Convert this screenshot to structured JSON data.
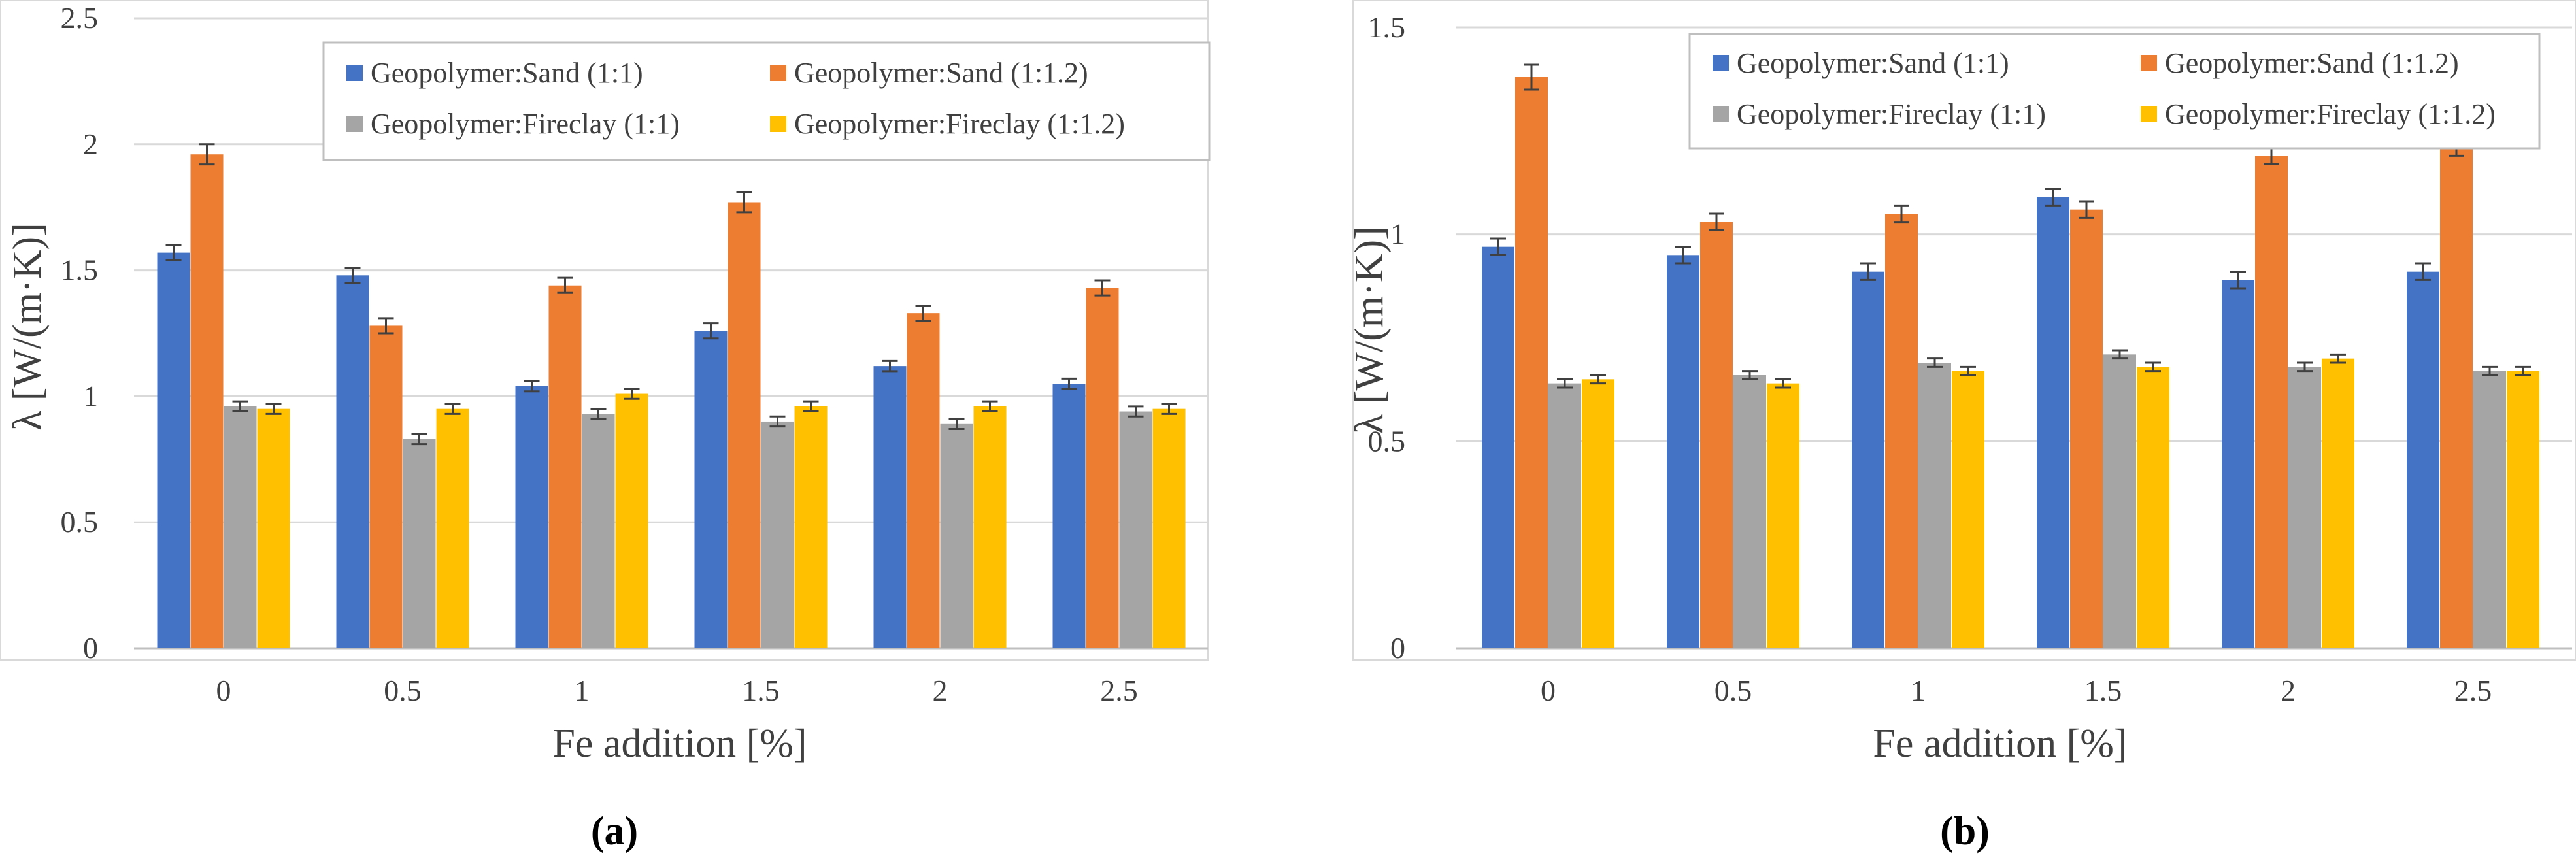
{
  "colors": {
    "sand_1_1": "#4472C4",
    "sand_1_1_2": "#ED7D31",
    "fireclay_1_1": "#A5A5A5",
    "fireclay_1_1_2": "#FFC000",
    "grid": "#d9d9d9",
    "axis_text": "#404040",
    "errorbar": "#404040"
  },
  "chart_data": [
    {
      "type": "bar",
      "panel_label": "(a)",
      "xlabel": "Fe addition [%]",
      "ylabel": "λ [W/(m·K)]",
      "ylim": [
        0,
        2.5
      ],
      "yticks": [
        0,
        0.5,
        1,
        1.5,
        2,
        2.5
      ],
      "ytick_labels": [
        "0",
        "0.5",
        "1",
        "1.5",
        "2",
        "2.5"
      ],
      "categories": [
        "0",
        "0.5",
        "1",
        "1.5",
        "2",
        "2.5"
      ],
      "grid": true,
      "legend_position": "top-right",
      "series": [
        {
          "name": "Geopolymer:Sand (1:1)",
          "color_key": "sand_1_1",
          "values": [
            1.57,
            1.48,
            1.04,
            1.26,
            1.12,
            1.05
          ],
          "errors": [
            0.03,
            0.03,
            0.02,
            0.03,
            0.02,
            0.02
          ]
        },
        {
          "name": "Geopolymer:Sand (1:1.2)",
          "color_key": "sand_1_1_2",
          "values": [
            1.96,
            1.28,
            1.44,
            1.77,
            1.33,
            1.43
          ],
          "errors": [
            0.04,
            0.03,
            0.03,
            0.04,
            0.03,
            0.03
          ]
        },
        {
          "name": "Geopolymer:Fireclay (1:1)",
          "color_key": "fireclay_1_1",
          "values": [
            0.96,
            0.83,
            0.93,
            0.9,
            0.89,
            0.94
          ],
          "errors": [
            0.02,
            0.02,
            0.02,
            0.02,
            0.02,
            0.02
          ]
        },
        {
          "name": "Geopolymer:Fireclay (1:1.2)",
          "color_key": "fireclay_1_1_2",
          "values": [
            0.95,
            0.95,
            1.01,
            0.96,
            0.96,
            0.95
          ],
          "errors": [
            0.02,
            0.02,
            0.02,
            0.02,
            0.02,
            0.02
          ]
        }
      ]
    },
    {
      "type": "bar",
      "panel_label": "(b)",
      "xlabel": "Fe addition [%]",
      "ylabel": "λ [W/(m·K)]",
      "ylim": [
        0,
        1.5
      ],
      "yticks": [
        0,
        0.5,
        1,
        1.5
      ],
      "ytick_labels": [
        "0",
        "0.5",
        "1",
        "1.5"
      ],
      "categories": [
        "0",
        "0.5",
        "1",
        "1.5",
        "2",
        "2.5"
      ],
      "grid": true,
      "legend_position": "top",
      "series": [
        {
          "name": "Geopolymer:Sand (1:1)",
          "color_key": "sand_1_1",
          "values": [
            0.97,
            0.95,
            0.91,
            1.09,
            0.89,
            0.91
          ],
          "errors": [
            0.02,
            0.02,
            0.02,
            0.02,
            0.02,
            0.02
          ]
        },
        {
          "name": "Geopolymer:Sand (1:1.2)",
          "color_key": "sand_1_1_2",
          "values": [
            1.38,
            1.03,
            1.05,
            1.06,
            1.19,
            1.21
          ],
          "errors": [
            0.03,
            0.02,
            0.02,
            0.02,
            0.02,
            0.02
          ]
        },
        {
          "name": "Geopolymer:Fireclay (1:1)",
          "color_key": "fireclay_1_1",
          "values": [
            0.64,
            0.66,
            0.69,
            0.71,
            0.68,
            0.67
          ],
          "errors": [
            0.01,
            0.01,
            0.01,
            0.01,
            0.01,
            0.01
          ]
        },
        {
          "name": "Geopolymer:Fireclay (1:1.2)",
          "color_key": "fireclay_1_1_2",
          "values": [
            0.65,
            0.64,
            0.67,
            0.68,
            0.7,
            0.67
          ],
          "errors": [
            0.01,
            0.01,
            0.01,
            0.01,
            0.01,
            0.01
          ]
        }
      ]
    }
  ]
}
